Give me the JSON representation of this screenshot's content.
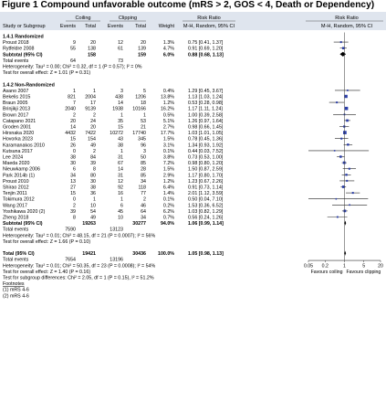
{
  "figure": {
    "title": "Figure 1 Compound unfavorable outcome (mRS > 2, GOS < 4, Death or Dependency)"
  },
  "headers": {
    "coiling": "Coiling",
    "clipping": "Clipping",
    "risk_ratio": "Risk Ratio",
    "study": "Study or Subgroup",
    "events": "Events",
    "total": "Total",
    "weight": "Weight",
    "method": "M-H, Random, 95% CI"
  },
  "chart_data": {
    "type": "forest",
    "xscale": "log",
    "xlim": [
      0.05,
      20
    ],
    "ticks": [
      {
        "value": 0.05,
        "label": "0.05"
      },
      {
        "value": 0.2,
        "label": "0.2"
      },
      {
        "value": 1,
        "label": "1"
      },
      {
        "value": 5,
        "label": "5"
      },
      {
        "value": 20,
        "label": "20"
      }
    ],
    "favours_left": "Favours coiling",
    "favours_right": "Favours clipping",
    "rows": [
      {
        "kind": "group",
        "label": "1.4.1 Randomized"
      },
      {
        "kind": "study",
        "label": "Proust 2018",
        "e1": "9",
        "n1": "20",
        "e2": "12",
        "n2": "20",
        "weight": "1.3%",
        "ci": "0.75 [0.41, 1.37]",
        "rr": 0.75,
        "lo": 0.41,
        "hi": 1.37
      },
      {
        "kind": "study",
        "label": "Rytfeldre 2008",
        "e1": "55",
        "n1": "138",
        "e2": "61",
        "n2": "139",
        "weight": "4.7%",
        "ci": "0.91 [0.69, 1.20]",
        "rr": 0.91,
        "lo": 0.69,
        "hi": 1.2
      },
      {
        "kind": "subtotal",
        "label": "Subtotal (95% CI)",
        "n1": "158",
        "n2": "159",
        "weight": "6.0%",
        "ci": "0.88 [0.68, 1.13]",
        "rr": 0.88,
        "lo": 0.68,
        "hi": 1.13
      },
      {
        "kind": "note",
        "label": "Total events",
        "e1": "64",
        "e2": "73"
      },
      {
        "kind": "note",
        "label": "Heterogeneity: Tau² = 0.00; Chi² = 0.32, df = 1 (P = 0.57); I² = 0%"
      },
      {
        "kind": "note",
        "label": "Test for overall effect: Z = 1.01 (P = 0.31)"
      },
      {
        "kind": "blank"
      },
      {
        "kind": "group",
        "label": "1.4.2 Non-Randomized"
      },
      {
        "kind": "study",
        "label": "Asano 2007",
        "e1": "1",
        "n1": "1",
        "e2": "3",
        "n2": "5",
        "weight": "0.4%",
        "ci": "1.29 [0.45, 3.67]",
        "rr": 1.29,
        "lo": 0.45,
        "hi": 3.67
      },
      {
        "kind": "study",
        "label": "Bekelis 2015",
        "e1": "821",
        "n1": "2004",
        "e2": "438",
        "n2": "1206",
        "weight": "13.8%",
        "ci": "1.13 [1.03, 1.24]",
        "rr": 1.13,
        "lo": 1.03,
        "hi": 1.24
      },
      {
        "kind": "study",
        "label": "Braun 2005",
        "e1": "7",
        "n1": "17",
        "e2": "14",
        "n2": "18",
        "weight": "1.2%",
        "ci": "0.53 [0.28, 0.98]",
        "rr": 0.53,
        "lo": 0.28,
        "hi": 0.98
      },
      {
        "kind": "study",
        "label": "Brinjikji 2013",
        "e1": "2040",
        "n1": "9139",
        "e2": "1938",
        "n2": "10166",
        "weight": "16.2%",
        "ci": "1.17 [1.11, 1.24]",
        "rr": 1.17,
        "lo": 1.11,
        "hi": 1.24
      },
      {
        "kind": "study",
        "label": "Brown 2017",
        "e1": "2",
        "n1": "2",
        "e2": "1",
        "n2": "1",
        "weight": "0.5%",
        "ci": "1.00 [0.39, 2.58]",
        "rr": 1.0,
        "lo": 0.39,
        "hi": 2.58
      },
      {
        "kind": "study",
        "label": "Catapano 2021",
        "e1": "20",
        "n1": "24",
        "e2": "35",
        "n2": "53",
        "weight": "5.1%",
        "ci": "1.26 [0.97, 1.64]",
        "rr": 1.26,
        "lo": 0.97,
        "hi": 1.64
      },
      {
        "kind": "study",
        "label": "Groden 2001",
        "e1": "14",
        "n1": "20",
        "e2": "15",
        "n2": "21",
        "weight": "2.7%",
        "ci": "0.98 [0.66, 1.45]",
        "rr": 0.98,
        "lo": 0.66,
        "hi": 1.45
      },
      {
        "kind": "study",
        "label": "Hirsnaka 2020",
        "e1": "4432",
        "n1": "7422",
        "e2": "10272",
        "n2": "17740",
        "weight": "17.7%",
        "ci": "1.03 [1.01, 1.05]",
        "rr": 1.03,
        "lo": 1.01,
        "hi": 1.05
      },
      {
        "kind": "study",
        "label": "Hovorka 2023",
        "e1": "15",
        "n1": "154",
        "e2": "43",
        "n2": "345",
        "weight": "1.5%",
        "ci": "0.78 [0.45, 1.36]",
        "rr": 0.78,
        "lo": 0.45,
        "hi": 1.36
      },
      {
        "kind": "study",
        "label": "Karamanakos 2010",
        "e1": "26",
        "n1": "49",
        "e2": "38",
        "n2": "96",
        "weight": "3.1%",
        "ci": "1.34 [0.93, 1.92]",
        "rr": 1.34,
        "lo": 0.93,
        "hi": 1.92
      },
      {
        "kind": "study",
        "label": "Kutsuna 2017",
        "e1": "0",
        "n1": "2",
        "e2": "1",
        "n2": "3",
        "weight": "0.1%",
        "ci": "0.44 [0.03, 7.52]",
        "rr": 0.44,
        "lo": 0.03,
        "hi": 7.52
      },
      {
        "kind": "study",
        "label": "Lee 2024",
        "e1": "38",
        "n1": "84",
        "e2": "31",
        "n2": "50",
        "weight": "3.8%",
        "ci": "0.73 [0.53, 1.00]",
        "rr": 0.73,
        "lo": 0.53,
        "hi": 1.0
      },
      {
        "kind": "study",
        "label": "Maeda 2020",
        "e1": "30",
        "n1": "39",
        "e2": "67",
        "n2": "85",
        "weight": "7.2%",
        "ci": "0.98 [0.80, 1.20]",
        "rr": 0.98,
        "lo": 0.8,
        "hi": 1.2
      },
      {
        "kind": "study",
        "label": "Nieuwkamp 2006",
        "e1": "6",
        "n1": "8",
        "e2": "14",
        "n2": "28",
        "weight": "1.5%",
        "ci": "1.50 [0.87, 2.59]",
        "rr": 1.5,
        "lo": 0.87,
        "hi": 2.59
      },
      {
        "kind": "study",
        "label": "Park 2014b (1)",
        "e1": "34",
        "n1": "80",
        "e2": "31",
        "n2": "85",
        "weight": "2.9%",
        "ci": "1.17 [0.80, 1.70]",
        "rr": 1.17,
        "lo": 0.8,
        "hi": 1.7
      },
      {
        "kind": "study",
        "label": "Proust 2010",
        "e1": "13",
        "n1": "30",
        "e2": "12",
        "n2": "34",
        "weight": "1.2%",
        "ci": "1.23 [0.67, 2.26]",
        "rr": 1.23,
        "lo": 0.67,
        "hi": 2.26
      },
      {
        "kind": "study",
        "label": "Shirao 2012",
        "e1": "27",
        "n1": "38",
        "e2": "92",
        "n2": "118",
        "weight": "6.4%",
        "ci": "0.91 [0.73, 1.14]",
        "rr": 0.91,
        "lo": 0.73,
        "hi": 1.14
      },
      {
        "kind": "study",
        "label": "Tenjin 2011",
        "e1": "15",
        "n1": "36",
        "e2": "16",
        "n2": "77",
        "weight": "1.4%",
        "ci": "2.01 [1.12, 3.59]",
        "rr": 2.01,
        "lo": 1.12,
        "hi": 3.59
      },
      {
        "kind": "study",
        "label": "Tokimura 2012",
        "e1": "0",
        "n1": "1",
        "e2": "1",
        "n2": "2",
        "weight": "0.1%",
        "ci": "0.50 [0.04, 7.10]",
        "rr": 0.5,
        "lo": 0.04,
        "hi": 7.1
      },
      {
        "kind": "study",
        "label": "Wang 2017",
        "e1": "2",
        "n1": "10",
        "e2": "6",
        "n2": "46",
        "weight": "0.2%",
        "ci": "1.53 [0.36, 6.52]",
        "rr": 1.53,
        "lo": 0.36,
        "hi": 6.52
      },
      {
        "kind": "study",
        "label": "Yoshikawa 2020 (2)",
        "e1": "39",
        "n1": "54",
        "e2": "45",
        "n2": "64",
        "weight": "6.2%",
        "ci": "1.03 [0.82, 1.29]",
        "rr": 1.03,
        "lo": 0.82,
        "hi": 1.29
      },
      {
        "kind": "study",
        "label": "Zheng 2018",
        "e1": "8",
        "n1": "49",
        "e2": "10",
        "n2": "34",
        "weight": "0.7%",
        "ci": "0.56 [0.24, 1.26]",
        "rr": 0.56,
        "lo": 0.24,
        "hi": 1.26
      },
      {
        "kind": "subtotal",
        "label": "Subtotal (95% CI)",
        "n1": "19263",
        "n2": "30277",
        "weight": "94.0%",
        "ci": "1.06 [0.99, 1.14]",
        "rr": 1.06,
        "lo": 0.99,
        "hi": 1.14
      },
      {
        "kind": "note",
        "label": "Total events",
        "e1": "7590",
        "e2": "13123"
      },
      {
        "kind": "note",
        "label": "Heterogeneity: Tau² = 0.01; Chi² = 48.15, df = 21 (P = 0.0007); I² = 56%"
      },
      {
        "kind": "note",
        "label": "Test for overall effect: Z = 1.66 (P = 0.10)"
      },
      {
        "kind": "blank"
      },
      {
        "kind": "total",
        "label": "Total (95% CI)",
        "n1": "19421",
        "n2": "30436",
        "weight": "100.0%",
        "ci": "1.05 [0.98, 1.13]",
        "rr": 1.05,
        "lo": 0.98,
        "hi": 1.13
      },
      {
        "kind": "note",
        "label": "Total events",
        "e1": "7654",
        "e2": "13196"
      },
      {
        "kind": "note",
        "label": "Heterogeneity: Tau² = 0.01; Chi² = 50.35, df = 23 (P = 0.0008); I² = 54%"
      },
      {
        "kind": "note",
        "label": "Test for overall effect: Z = 1.40 (P = 0.16)"
      },
      {
        "kind": "note",
        "label": "Test for subgroup differences: Chi² = 2.05, df = 1 (P = 0.15), I² = 51.2%"
      },
      {
        "kind": "footnote-head",
        "label": "Footnotes"
      },
      {
        "kind": "footnote",
        "label": "(1) mRS 4-6"
      },
      {
        "kind": "footnote",
        "label": "(2) mRS 4-6"
      }
    ]
  }
}
